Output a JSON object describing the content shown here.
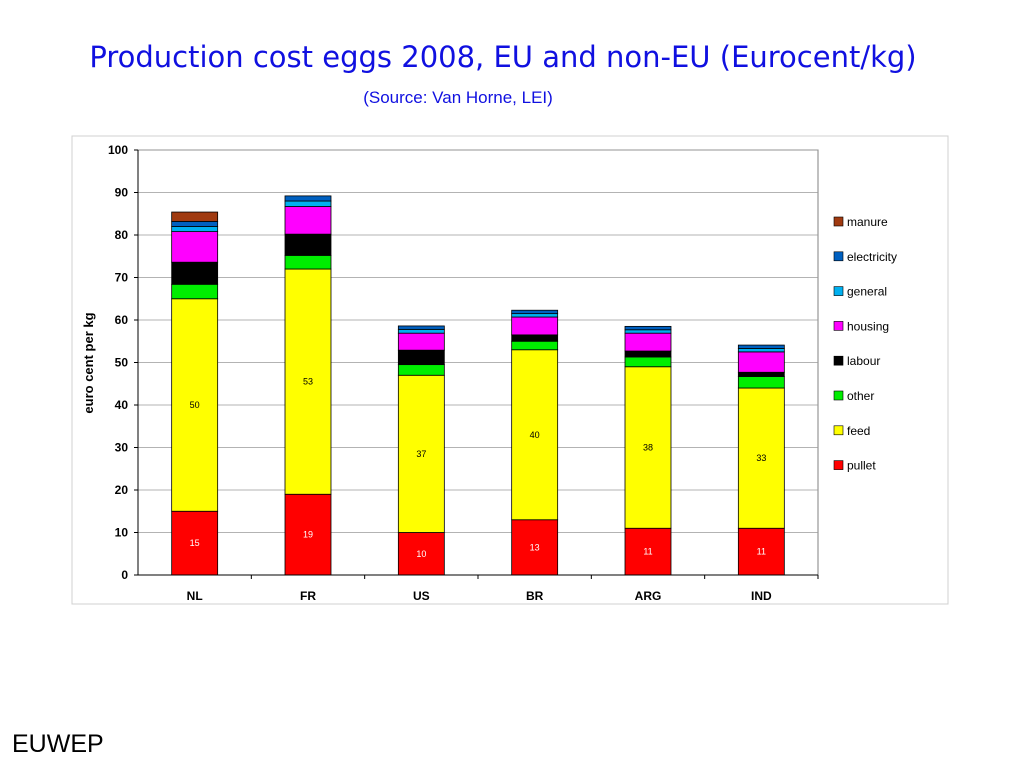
{
  "slide": {
    "title": "Production cost eggs 2008, EU and non-EU (Eurocent/kg)",
    "subtitle": "(Source: Van Horne, LEI)",
    "footer": "EUWEP"
  },
  "chart_data": {
    "type": "bar",
    "stacked": true,
    "title": "",
    "xlabel": "",
    "ylabel": "euro cent per kg",
    "ylim": [
      0,
      100
    ],
    "ytick_step": 10,
    "grid": "horizontal",
    "legend_position": "right",
    "categories": [
      "NL",
      "FR",
      "US",
      "BR",
      "ARG",
      "IND"
    ],
    "series": [
      {
        "name": "pullet",
        "color": "#ff0000",
        "values": [
          15,
          19,
          10,
          13,
          11,
          11
        ],
        "labels": [
          "15",
          "19",
          "10",
          "13",
          "11",
          "11"
        ],
        "label_color": "#ffffff"
      },
      {
        "name": "feed",
        "color": "#ffff00",
        "values": [
          50,
          53,
          37,
          40,
          38,
          33
        ],
        "labels": [
          "50",
          "53",
          "37",
          "40",
          "38",
          "33"
        ],
        "label_color": "#000000"
      },
      {
        "name": "other",
        "color": "#00ee00",
        "values": [
          3.4,
          3.2,
          2.5,
          2.0,
          2.3,
          2.7
        ],
        "labels": [],
        "label_color": "#000000"
      },
      {
        "name": "labour",
        "color": "#000000",
        "values": [
          5.2,
          5.0,
          3.4,
          1.5,
          1.4,
          1.0
        ],
        "labels": [],
        "label_color": "#000000"
      },
      {
        "name": "housing",
        "color": "#ff00ff",
        "values": [
          7.2,
          6.5,
          4.0,
          4.2,
          4.2,
          4.8
        ],
        "labels": [],
        "label_color": "#000000"
      },
      {
        "name": "general",
        "color": "#00b0f0",
        "values": [
          1.2,
          1.3,
          0.9,
          0.8,
          0.8,
          0.8
        ],
        "labels": [],
        "label_color": "#000000"
      },
      {
        "name": "electricity",
        "color": "#0060c0",
        "values": [
          1.2,
          1.2,
          0.8,
          0.8,
          0.8,
          0.8
        ],
        "labels": [],
        "label_color": "#000000"
      },
      {
        "name": "manure",
        "color": "#a03a10",
        "values": [
          2.2,
          0,
          0,
          0,
          0,
          0
        ],
        "labels": [],
        "label_color": "#000000"
      }
    ]
  }
}
